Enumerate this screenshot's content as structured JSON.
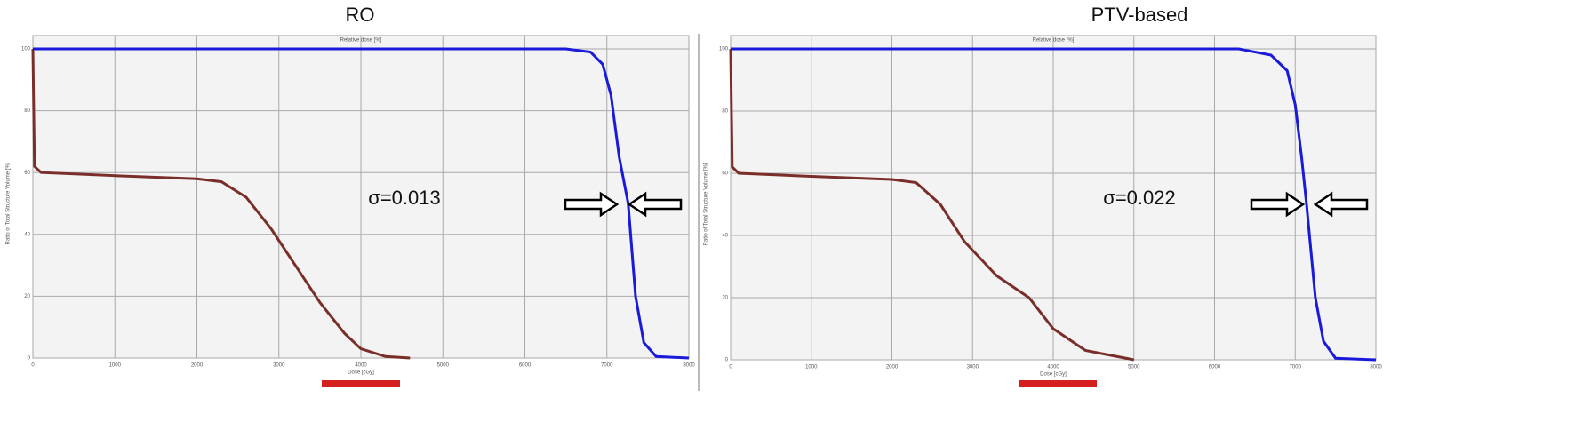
{
  "chart_data": [
    {
      "type": "line",
      "title": "RO",
      "annotation": "σ=0.013",
      "xlabel": "Dose [cGy]",
      "ylabel": "Ratio of Total Structure Volume [%]",
      "x2label": "Relative dose [%]",
      "xlim": [
        0,
        8000
      ],
      "ylim": [
        0,
        100
      ],
      "xticks": [
        0,
        1000,
        2000,
        3000,
        4000,
        5000,
        6000,
        7000,
        8000
      ],
      "yticks": [
        0,
        20,
        40,
        60,
        80,
        100
      ],
      "grid": true,
      "series": [
        {
          "color": "#7a2e2a",
          "x": [
            0,
            10,
            20,
            100,
            1000,
            2000,
            2300,
            2600,
            2900,
            3200,
            3500,
            3800,
            4000,
            4300,
            4600
          ],
          "values": [
            100,
            80,
            62,
            60,
            59,
            58,
            57,
            52,
            42,
            30,
            18,
            8,
            3,
            0.5,
            0
          ]
        },
        {
          "color": "#1a1adb",
          "x": [
            0,
            6500,
            6800,
            6950,
            7050,
            7150,
            7260,
            7350,
            7450,
            7600,
            8000
          ],
          "values": [
            100,
            100,
            99,
            95,
            85,
            65,
            50,
            20,
            5,
            0.5,
            0
          ]
        }
      ]
    },
    {
      "type": "line",
      "title": "PTV-based",
      "annotation": "σ=0.022",
      "xlabel": "Dose [cGy]",
      "ylabel": "Ratio of Total Structure Volume [%]",
      "x2label": "Relative dose [%]",
      "xlim": [
        0,
        8000
      ],
      "ylim": [
        0,
        100
      ],
      "xticks": [
        0,
        1000,
        2000,
        3000,
        4000,
        5000,
        6000,
        7000,
        8000
      ],
      "yticks": [
        0,
        20,
        40,
        60,
        80,
        100
      ],
      "grid": true,
      "series": [
        {
          "color": "#7a2e2a",
          "x": [
            0,
            10,
            20,
            100,
            1000,
            2000,
            2300,
            2600,
            2900,
            3300,
            3700,
            4000,
            4400,
            5000
          ],
          "values": [
            100,
            80,
            62,
            60,
            59,
            58,
            57,
            50,
            38,
            27,
            20,
            10,
            3,
            0
          ]
        },
        {
          "color": "#1a1adb",
          "x": [
            0,
            6300,
            6700,
            6900,
            7000,
            7080,
            7140,
            7250,
            7350,
            7500,
            8000
          ],
          "values": [
            100,
            100,
            98,
            93,
            82,
            65,
            50,
            20,
            6,
            0.5,
            0
          ]
        }
      ]
    }
  ]
}
